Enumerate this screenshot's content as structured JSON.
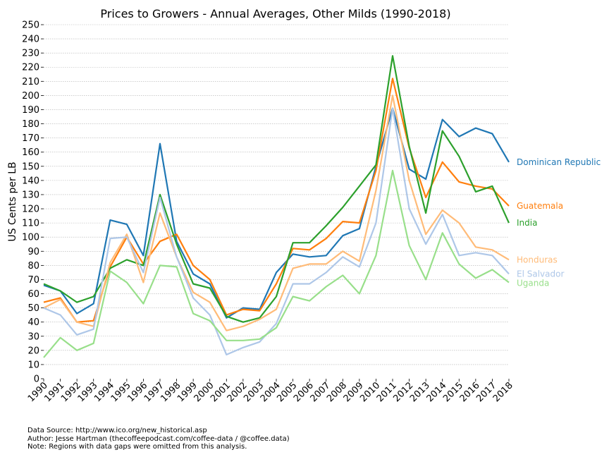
{
  "chart_data": {
    "type": "line",
    "title": "Prices to Growers - Annual Averages, Other Milds (1990-2018)",
    "ylabel": "US Cents per LB",
    "xlabel": "",
    "ylim": [
      0,
      250
    ],
    "yticks": [
      0,
      10,
      20,
      30,
      40,
      50,
      60,
      70,
      80,
      90,
      100,
      110,
      120,
      130,
      140,
      150,
      160,
      170,
      180,
      190,
      200,
      210,
      220,
      230,
      240,
      250
    ],
    "x": [
      "1990",
      "1991",
      "1992",
      "1993",
      "1994",
      "1995",
      "1996",
      "1997",
      "1998",
      "1999",
      "2000",
      "2001",
      "2002",
      "2003",
      "2004",
      "2005",
      "2006",
      "2007",
      "2008",
      "2009",
      "2010",
      "2011",
      "2012",
      "2013",
      "2014",
      "2015",
      "2016",
      "2017",
      "2018"
    ],
    "grid": "horizontal dotted",
    "legend": "direct labels at right end of lines",
    "series": [
      {
        "name": "Dominican Republic",
        "color": "#1f77b4",
        "values": [
          66,
          62,
          46,
          53,
          112,
          109,
          87,
          166,
          97,
          74,
          67,
          43,
          50,
          49,
          75,
          88,
          86,
          87,
          101,
          106,
          150,
          191,
          148,
          141,
          183,
          171,
          177,
          173,
          153
        ]
      },
      {
        "name": "Guatemala",
        "color": "#ff7f0e",
        "values": [
          54,
          57,
          40,
          41,
          79,
          100,
          81,
          97,
          102,
          80,
          70,
          45,
          49,
          48,
          67,
          92,
          91,
          99,
          111,
          110,
          147,
          212,
          163,
          128,
          153,
          139,
          136,
          134,
          122
        ]
      },
      {
        "name": "India",
        "color": "#2ca02c",
        "values": [
          67,
          62,
          54,
          58,
          78,
          84,
          80,
          130,
          95,
          67,
          64,
          44,
          40,
          43,
          58,
          96,
          96,
          108,
          121,
          136,
          151,
          228,
          164,
          117,
          175,
          157,
          132,
          136,
          110
        ]
      },
      {
        "name": "Honduras",
        "color": "#ffbb78",
        "values": [
          50,
          56,
          40,
          37,
          82,
          102,
          68,
          117,
          86,
          61,
          54,
          34,
          37,
          42,
          49,
          78,
          81,
          81,
          90,
          83,
          133,
          200,
          140,
          102,
          119,
          110,
          93,
          91,
          84
        ]
      },
      {
        "name": "El Salvador",
        "color": "#aec7e8",
        "values": [
          50,
          45,
          31,
          35,
          99,
          100,
          75,
          128,
          86,
          57,
          45,
          17,
          22,
          26,
          39,
          67,
          67,
          75,
          86,
          79,
          110,
          191,
          120,
          95,
          116,
          87,
          89,
          87,
          74
        ]
      },
      {
        "name": "Uganda",
        "color": "#98df8a",
        "values": [
          15,
          29,
          20,
          25,
          76,
          68,
          53,
          80,
          79,
          46,
          41,
          27,
          27,
          28,
          36,
          58,
          55,
          65,
          73,
          60,
          87,
          147,
          94,
          70,
          103,
          81,
          71,
          77,
          68
        ]
      }
    ]
  },
  "footer": {
    "line1": "Data Source: http://www.ico.org/new_historical.asp",
    "line2": "Author: Jesse Hartman (thecoffeepodcast.com/coffee-data / @coffee.data)",
    "line3": "Note: Regions with data gaps were omitted from this analysis."
  }
}
